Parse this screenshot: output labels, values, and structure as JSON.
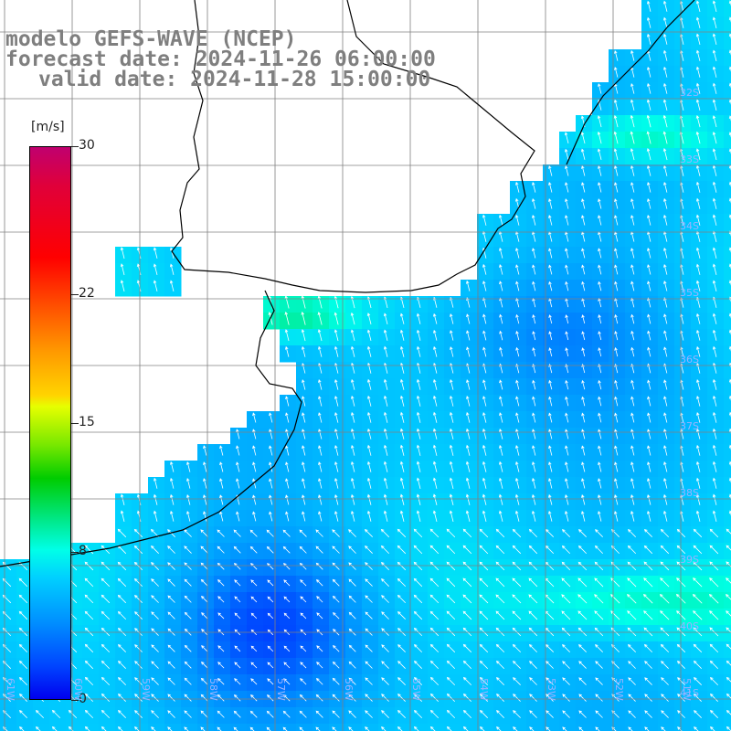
{
  "title": {
    "model_line": "modelo GEFS-WAVE (NCEP)",
    "forecast_line": "forecast date: 2024-11-26 06:00:00",
    "valid_line": "valid date: 2024-11-28 15:00:00"
  },
  "colorbar": {
    "unit": "[m/s]",
    "ticks": [
      {
        "label": "30",
        "value": 30
      },
      {
        "label": "22",
        "value": 22
      },
      {
        "label": "15",
        "value": 15
      },
      {
        "label": "8",
        "value": 8
      },
      {
        "label": "0",
        "value": 0
      }
    ],
    "min": 0,
    "max": 30
  },
  "axes": {
    "lon_labels": [
      "61W",
      "60W",
      "59W",
      "58W",
      "57W",
      "56W",
      "55W",
      "54W",
      "53W",
      "52W",
      "51W"
    ],
    "lat_labels": [
      "32S",
      "33S",
      "34S",
      "35S",
      "36S",
      "37S",
      "38S",
      "39S",
      "40S",
      "41S"
    ]
  },
  "colors": {
    "land": "#ffffff",
    "coastline": "#000000",
    "grid": "#808080",
    "arrows": "#ffffff",
    "title_text": "#7f7f7f"
  }
}
